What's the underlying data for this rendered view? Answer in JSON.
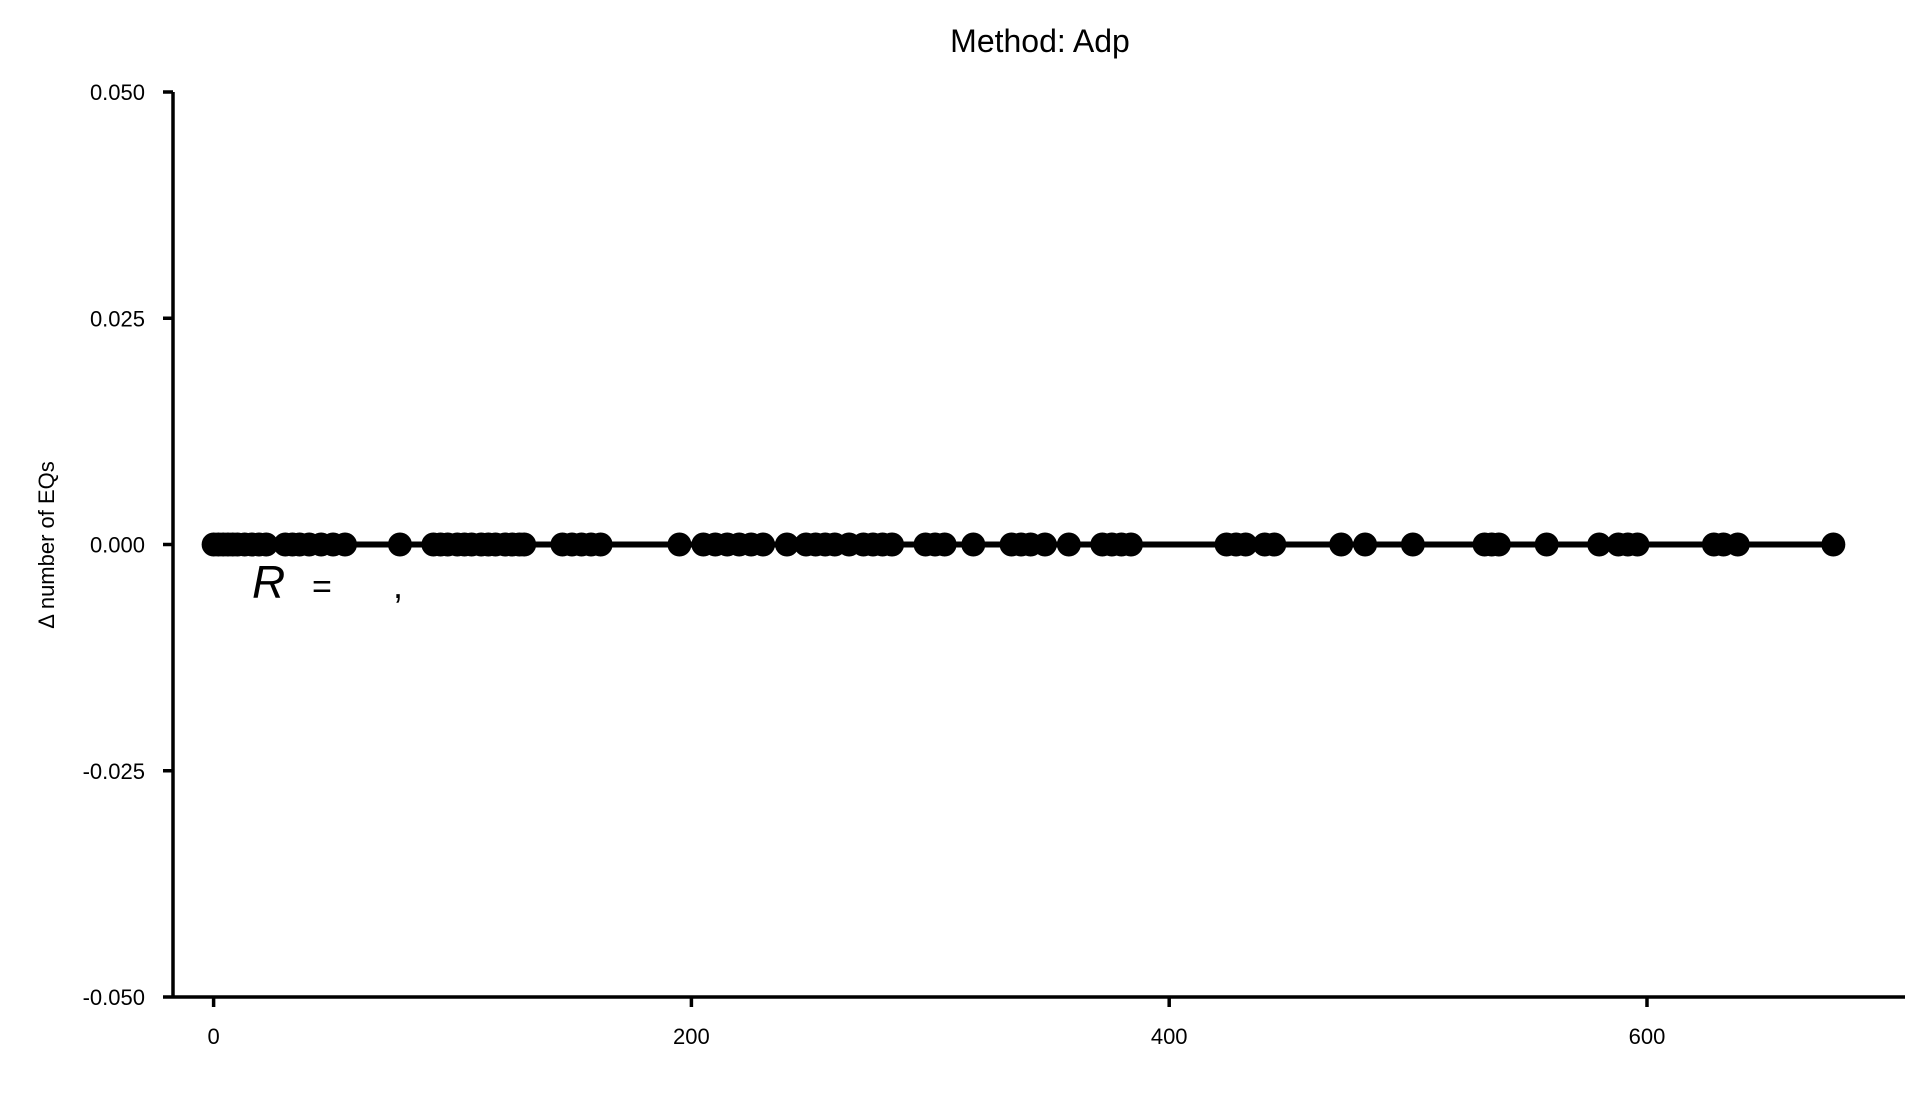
{
  "chart_data": {
    "type": "scatter",
    "title": "Method: Adp",
    "xlabel": "",
    "ylabel": "Δ number of EQs",
    "xlim": [
      -17,
      708
    ],
    "ylim": [
      -0.05,
      0.05
    ],
    "xticks": [
      0,
      200,
      400,
      600
    ],
    "xtick_labels": [
      "0",
      "200",
      "400",
      "600"
    ],
    "yticks": [
      0.05,
      0.025,
      0.0,
      -0.025,
      -0.05
    ],
    "ytick_labels": [
      "0.050",
      "0.025",
      "0.000",
      "-0.025",
      "-0.050"
    ],
    "grid": false,
    "legend": "none",
    "line_color": "#000000",
    "marker_color": "#000000",
    "fit_line": {
      "x": [
        0,
        678
      ],
      "y": [
        0,
        0
      ]
    },
    "annotation": {
      "r_symbol": "R",
      "equals": "=",
      "comma": ","
    },
    "series": [
      {
        "x": [
          0,
          2,
          4,
          6,
          8,
          10,
          13,
          16,
          19,
          22,
          30,
          33,
          36,
          40,
          45,
          50,
          55,
          78,
          92,
          95,
          98,
          102,
          105,
          108,
          112,
          115,
          118,
          122,
          125,
          128,
          130,
          146,
          150,
          154,
          158,
          162,
          195,
          205,
          210,
          215,
          220,
          225,
          230,
          240,
          248,
          252,
          256,
          260,
          266,
          272,
          276,
          280,
          284,
          298,
          302,
          306,
          318,
          334,
          338,
          342,
          348,
          358,
          372,
          376,
          380,
          384,
          424,
          428,
          432,
          440,
          444,
          472,
          482,
          502,
          532,
          535,
          538,
          558,
          580,
          588,
          592,
          596,
          628,
          632,
          638,
          678
        ],
        "y": [
          0,
          0,
          0,
          0,
          0,
          0,
          0,
          0,
          0,
          0,
          0,
          0,
          0,
          0,
          0,
          0,
          0,
          0,
          0,
          0,
          0,
          0,
          0,
          0,
          0,
          0,
          0,
          0,
          0,
          0,
          0,
          0,
          0,
          0,
          0,
          0,
          0,
          0,
          0,
          0,
          0,
          0,
          0,
          0,
          0,
          0,
          0,
          0,
          0,
          0,
          0,
          0,
          0,
          0,
          0,
          0,
          0,
          0,
          0,
          0,
          0,
          0,
          0,
          0,
          0,
          0,
          0,
          0,
          0,
          0,
          0,
          0,
          0,
          0,
          0,
          0,
          0,
          0,
          0,
          0,
          0,
          0,
          0,
          0,
          0,
          0
        ]
      }
    ]
  }
}
